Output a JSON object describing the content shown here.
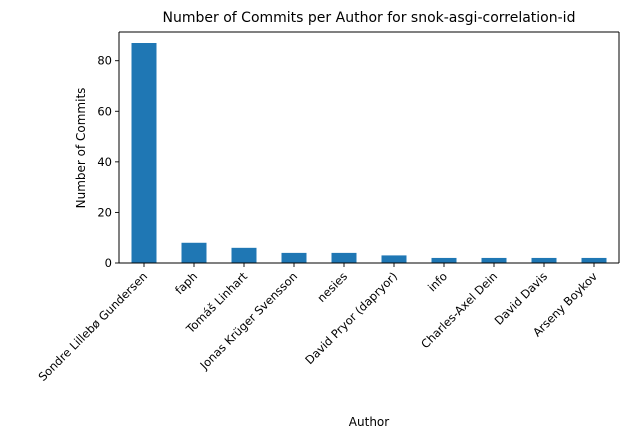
{
  "chart_data": {
    "type": "bar",
    "title": "Number of Commits per Author for snok-asgi-correlation-id",
    "xlabel": "Author",
    "ylabel": "Number of Commits",
    "categories": [
      "Sondre Lillebø Gundersen",
      "faph",
      "Tomáš Linhart",
      "Jonas Krüger Svensson",
      "nesies",
      "David Pryor (dapryor)",
      "info",
      "Charles-Axel Dein",
      "David Davis",
      "Arseny Boykov"
    ],
    "values": [
      87,
      8,
      6,
      4,
      4,
      3,
      2,
      2,
      2,
      2
    ],
    "ylim": [
      0,
      91.35
    ],
    "yticks": [
      0,
      20,
      40,
      60,
      80
    ],
    "grid": false,
    "legend": "none",
    "bar_color": "#1f77b4"
  }
}
